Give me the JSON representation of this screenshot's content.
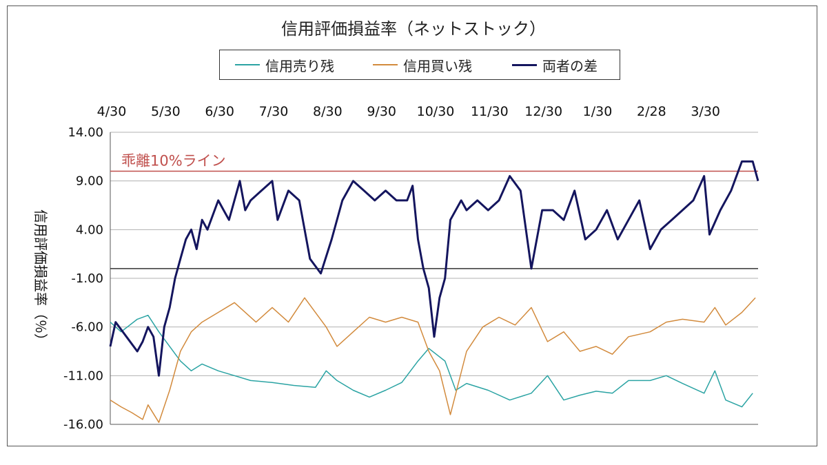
{
  "chart_data": {
    "type": "line",
    "title": "信用評価損益率（ネットストック）",
    "ylabel": "信用評価損益率（％）",
    "ylim": [
      -16,
      14
    ],
    "yticks": [
      "14.00",
      "9.00",
      "4.00",
      "-1.00",
      "-6.00",
      "-11.00",
      "-16.00"
    ],
    "ytick_values": [
      14,
      9,
      4,
      -1,
      -6,
      -11,
      -16
    ],
    "xticks": [
      "4/30",
      "5/30",
      "6/30",
      "7/30",
      "8/30",
      "9/30",
      "10/30",
      "11/30",
      "12/30",
      "1/30",
      "2/28",
      "3/30"
    ],
    "x_range": [
      0,
      12
    ],
    "reference_line": {
      "y": 10,
      "label": "乖離10%ライン",
      "color": "#c0504d"
    },
    "series": [
      {
        "name": "信用売り残",
        "color": "#2aa3a3",
        "x": [
          0,
          0.2,
          0.5,
          0.7,
          0.9,
          1.1,
          1.3,
          1.5,
          1.7,
          2,
          2.3,
          2.6,
          3,
          3.4,
          3.8,
          4,
          4.2,
          4.5,
          4.8,
          5.1,
          5.4,
          5.7,
          5.9,
          6.2,
          6.4,
          6.6,
          7,
          7.4,
          7.8,
          8.1,
          8.4,
          8.7,
          9,
          9.3,
          9.6,
          10,
          10.3,
          10.6,
          11,
          11.2,
          11.4,
          11.7,
          11.9
        ],
        "values": [
          -5.5,
          -6.5,
          -5.2,
          -4.8,
          -6.5,
          -8,
          -9.5,
          -10.5,
          -9.8,
          -10.5,
          -11,
          -11.5,
          -11.7,
          -12,
          -12.2,
          -10.5,
          -11.5,
          -12.5,
          -13.2,
          -12.5,
          -11.7,
          -9.5,
          -8.2,
          -9.5,
          -12.5,
          -11.8,
          -12.5,
          -13.5,
          -12.8,
          -11,
          -13.5,
          -13,
          -12.6,
          -12.8,
          -11.5,
          -11.5,
          -11,
          -11.8,
          -12.8,
          -10.5,
          -13.5,
          -14.2,
          -12.8
        ]
      },
      {
        "name": "信用買い残",
        "color": "#d28a3c",
        "x": [
          0,
          0.2,
          0.4,
          0.6,
          0.7,
          0.9,
          1.1,
          1.3,
          1.5,
          1.7,
          2,
          2.3,
          2.7,
          3,
          3.3,
          3.6,
          4,
          4.2,
          4.5,
          4.8,
          5.1,
          5.4,
          5.7,
          5.9,
          6.1,
          6.3,
          6.6,
          6.9,
          7.2,
          7.5,
          7.8,
          8.1,
          8.4,
          8.7,
          9,
          9.3,
          9.6,
          10,
          10.3,
          10.6,
          11,
          11.2,
          11.4,
          11.7,
          11.95
        ],
        "values": [
          -13.5,
          -14.2,
          -14.8,
          -15.5,
          -14,
          -15.8,
          -12.5,
          -8.5,
          -6.5,
          -5.5,
          -4.5,
          -3.5,
          -5.5,
          -4,
          -5.5,
          -3,
          -6,
          -8,
          -6.5,
          -5,
          -5.5,
          -5,
          -5.5,
          -8.5,
          -10.5,
          -15,
          -8.5,
          -6,
          -5,
          -5.8,
          -4,
          -7.5,
          -6.5,
          -8.5,
          -8,
          -8.8,
          -7,
          -6.5,
          -5.5,
          -5.2,
          -5.5,
          -4,
          -5.8,
          -4.5,
          -3
        ]
      },
      {
        "name": "両者の差",
        "color": "#14155e",
        "x": [
          0,
          0.1,
          0.3,
          0.5,
          0.6,
          0.7,
          0.8,
          0.9,
          1,
          1.1,
          1.2,
          1.3,
          1.4,
          1.5,
          1.6,
          1.7,
          1.8,
          2,
          2.1,
          2.2,
          2.4,
          2.5,
          2.6,
          2.8,
          3,
          3.1,
          3.3,
          3.5,
          3.7,
          3.9,
          4.1,
          4.3,
          4.5,
          4.7,
          4.9,
          5.1,
          5.3,
          5.5,
          5.6,
          5.7,
          5.8,
          5.9,
          6,
          6.1,
          6.2,
          6.3,
          6.5,
          6.6,
          6.8,
          7,
          7.2,
          7.4,
          7.6,
          7.8,
          8,
          8.2,
          8.4,
          8.6,
          8.8,
          9,
          9.2,
          9.4,
          9.6,
          9.8,
          10,
          10.2,
          10.4,
          10.6,
          10.8,
          11,
          11.1,
          11.3,
          11.5,
          11.7,
          11.9,
          12
        ],
        "values": [
          -8,
          -5.5,
          -7,
          -8.5,
          -7.5,
          -6,
          -7,
          -11,
          -6,
          -4,
          -1,
          1,
          3,
          4,
          2,
          5,
          4,
          7,
          6,
          5,
          9,
          6,
          7,
          8,
          9,
          5,
          8,
          7,
          1,
          -0.5,
          3,
          7,
          9,
          8,
          7,
          8,
          7,
          7,
          8.5,
          3,
          0,
          -2,
          -7,
          -3,
          -1,
          5,
          7,
          6,
          7,
          6,
          7,
          9.5,
          8,
          0,
          6,
          6,
          5,
          8,
          3,
          4,
          6,
          3,
          5,
          7,
          2,
          4,
          5,
          6,
          7,
          9.5,
          3.5,
          6,
          8,
          11,
          11,
          9
        ]
      }
    ]
  }
}
